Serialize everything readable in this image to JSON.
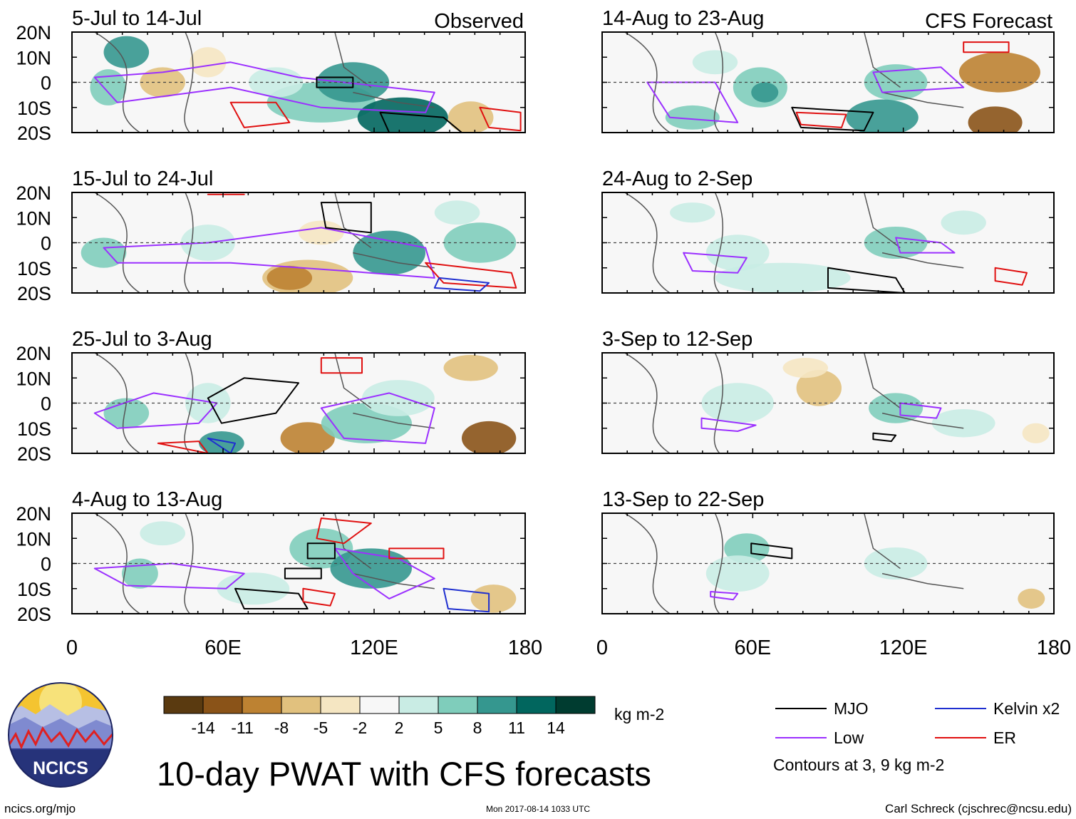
{
  "chart_data": {
    "type": "heatmap",
    "title": "10-day PWAT with CFS forecasts",
    "units": "kg m-2",
    "observed_label": "Observed",
    "forecast_label": "CFS Forecast",
    "x_ticks": [
      "0",
      "60E",
      "120E",
      "180"
    ],
    "y_ticks": [
      "20N",
      "10N",
      "0",
      "10S",
      "20S"
    ],
    "xlim": [
      0,
      180
    ],
    "ylim": [
      -20,
      20
    ],
    "observed_panels": [
      "5-Jul to 14-Jul",
      "15-Jul to 24-Jul",
      "25-Jul to 3-Aug",
      "4-Aug to 13-Aug"
    ],
    "forecast_panels": [
      "14-Aug to 23-Aug",
      "24-Aug to 2-Sep",
      "3-Sep to 12-Sep",
      "13-Sep to 22-Sep"
    ],
    "colorbar": {
      "tick_labels": [
        "-14",
        "-11",
        "-8",
        "-5",
        "-2",
        "2",
        "5",
        "8",
        "11",
        "14"
      ],
      "colors": [
        "#5a3a10",
        "#8a5318",
        "#bd8232",
        "#e1c17e",
        "#f5e6c2",
        "#f7f7f7",
        "#c9ece4",
        "#7fcdbb",
        "#35978f",
        "#01665e",
        "#003c30"
      ]
    },
    "legend": [
      {
        "label": "MJO",
        "color": "#000000"
      },
      {
        "label": "Low",
        "color": "#9b30ff"
      },
      {
        "label": "Kelvin x2",
        "color": "#1f2fd0"
      },
      {
        "label": "ER",
        "color": "#e01010"
      }
    ],
    "contour_note": "Contours at 3, 9 kg m-2"
  },
  "footer": {
    "logo_text": "NCICS",
    "url": "ncics.org/mjo",
    "timestamp": "Mon 2017-08-14 1033 UTC",
    "author": "Carl Schreck (cjschrec@ncsu.edu)"
  }
}
